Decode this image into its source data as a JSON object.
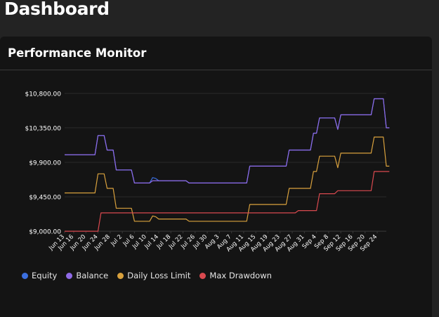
{
  "header": {
    "title": "Dashboard"
  },
  "card": {
    "title": "Performance Monitor"
  },
  "colors": {
    "equity": "#3b6fe0",
    "balance": "#8f6ae6",
    "daily_loss_limit": "#d9a13d",
    "max_drawdown": "#d9494f",
    "grid": "#2a2a2a",
    "axis_text": "#ffffff"
  },
  "chart_data": {
    "type": "line",
    "title": "",
    "xlabel": "",
    "ylabel": "",
    "ylim": [
      9000,
      10900
    ],
    "y_ticks": [
      "$9,000.00",
      "$9,450.00",
      "$9,900.00",
      "$10,350.00",
      "$10,800.00"
    ],
    "y_tick_values": [
      9000,
      9450,
      9900,
      10350,
      10800
    ],
    "x_ticks": [
      "Jun 13",
      "Jun 16",
      "Jun 20",
      "Jun 24",
      "Jun 28",
      "Jul 2",
      "Jul 6",
      "Jul 10",
      "Jul 14",
      "Jul 18",
      "Jul 22",
      "Jul 26",
      "Jul 30",
      "Aug 3",
      "Aug 7",
      "Aug 11",
      "Aug 15",
      "Aug 19",
      "Aug 23",
      "Aug 27",
      "Aug 31",
      "Sep 4",
      "Sep 8",
      "Sep 12",
      "Sep 16",
      "Sep 20",
      "Sep 24"
    ],
    "x_range": [
      "Jun 13",
      "Sep 27"
    ],
    "grid": true,
    "legend_position": "bottom-left",
    "series": [
      {
        "name": "Equity",
        "color_key": "equity",
        "points": [
          [
            "Jun 13",
            10000
          ],
          [
            "Jun 23",
            10000
          ],
          [
            "Jun 24",
            10250
          ],
          [
            "Jun 26",
            10250
          ],
          [
            "Jun 27",
            10060
          ],
          [
            "Jun 29",
            10060
          ],
          [
            "Jun 30",
            9800
          ],
          [
            "Jul 5",
            9800
          ],
          [
            "Jul 6",
            9630
          ],
          [
            "Jul 11",
            9630
          ],
          [
            "Jul 12",
            9700
          ],
          [
            "Jul 13",
            9690
          ],
          [
            "Jul 14",
            9660
          ],
          [
            "Jul 23",
            9660
          ],
          [
            "Jul 24",
            9630
          ],
          [
            "Aug 12",
            9630
          ],
          [
            "Aug 13",
            9850
          ],
          [
            "Aug 25",
            9850
          ],
          [
            "Aug 26",
            10060
          ],
          [
            "Sep 2",
            10060
          ],
          [
            "Sep 3",
            10280
          ],
          [
            "Sep 4",
            10280
          ],
          [
            "Sep 5",
            10480
          ],
          [
            "Sep 10",
            10480
          ],
          [
            "Sep 11",
            10330
          ],
          [
            "Sep 12",
            10520
          ],
          [
            "Sep 22",
            10520
          ],
          [
            "Sep 23",
            10730
          ],
          [
            "Sep 26",
            10730
          ],
          [
            "Sep 27",
            10350
          ],
          [
            "Sep 28",
            10350
          ]
        ]
      },
      {
        "name": "Balance",
        "color_key": "balance",
        "points": [
          [
            "Jun 13",
            10000
          ],
          [
            "Jun 23",
            10000
          ],
          [
            "Jun 24",
            10250
          ],
          [
            "Jun 26",
            10250
          ],
          [
            "Jun 27",
            10060
          ],
          [
            "Jun 29",
            10060
          ],
          [
            "Jun 30",
            9800
          ],
          [
            "Jul 5",
            9800
          ],
          [
            "Jul 6",
            9630
          ],
          [
            "Jul 11",
            9630
          ],
          [
            "Jul 12",
            9660
          ],
          [
            "Jul 23",
            9660
          ],
          [
            "Jul 24",
            9630
          ],
          [
            "Aug 12",
            9630
          ],
          [
            "Aug 13",
            9850
          ],
          [
            "Aug 25",
            9850
          ],
          [
            "Aug 26",
            10060
          ],
          [
            "Sep 2",
            10060
          ],
          [
            "Sep 3",
            10280
          ],
          [
            "Sep 4",
            10280
          ],
          [
            "Sep 5",
            10480
          ],
          [
            "Sep 10",
            10480
          ],
          [
            "Sep 11",
            10330
          ],
          [
            "Sep 12",
            10520
          ],
          [
            "Sep 22",
            10520
          ],
          [
            "Sep 23",
            10730
          ],
          [
            "Sep 26",
            10730
          ],
          [
            "Sep 27",
            10350
          ],
          [
            "Sep 28",
            10350
          ]
        ]
      },
      {
        "name": "Daily Loss Limit",
        "color_key": "daily_loss_limit",
        "points": [
          [
            "Jun 13",
            9500
          ],
          [
            "Jun 23",
            9500
          ],
          [
            "Jun 24",
            9750
          ],
          [
            "Jun 26",
            9750
          ],
          [
            "Jun 27",
            9560
          ],
          [
            "Jun 29",
            9560
          ],
          [
            "Jun 30",
            9300
          ],
          [
            "Jul 5",
            9300
          ],
          [
            "Jul 6",
            9130
          ],
          [
            "Jul 11",
            9130
          ],
          [
            "Jul 12",
            9200
          ],
          [
            "Jul 13",
            9190
          ],
          [
            "Jul 14",
            9160
          ],
          [
            "Jul 23",
            9160
          ],
          [
            "Jul 24",
            9130
          ],
          [
            "Aug 12",
            9130
          ],
          [
            "Aug 13",
            9350
          ],
          [
            "Aug 25",
            9350
          ],
          [
            "Aug 26",
            9560
          ],
          [
            "Sep 2",
            9560
          ],
          [
            "Sep 3",
            9780
          ],
          [
            "Sep 4",
            9780
          ],
          [
            "Sep 5",
            9980
          ],
          [
            "Sep 10",
            9980
          ],
          [
            "Sep 11",
            9830
          ],
          [
            "Sep 12",
            10020
          ],
          [
            "Sep 22",
            10020
          ],
          [
            "Sep 23",
            10230
          ],
          [
            "Sep 26",
            10230
          ],
          [
            "Sep 27",
            9850
          ],
          [
            "Sep 28",
            9850
          ]
        ]
      },
      {
        "name": "Max Drawdown",
        "color_key": "max_drawdown",
        "points": [
          [
            "Jun 13",
            9000
          ],
          [
            "Jun 24",
            9000
          ],
          [
            "Jun 25",
            9240
          ],
          [
            "Aug 28",
            9240
          ],
          [
            "Aug 29",
            9270
          ],
          [
            "Sep 4",
            9270
          ],
          [
            "Sep 5",
            9490
          ],
          [
            "Sep 10",
            9490
          ],
          [
            "Sep 11",
            9530
          ],
          [
            "Sep 22",
            9530
          ],
          [
            "Sep 23",
            9780
          ],
          [
            "Sep 28",
            9780
          ]
        ]
      }
    ]
  },
  "legend": [
    {
      "label": "Equity",
      "color_key": "equity"
    },
    {
      "label": "Balance",
      "color_key": "balance"
    },
    {
      "label": "Daily Loss Limit",
      "color_key": "daily_loss_limit"
    },
    {
      "label": "Max Drawdown",
      "color_key": "max_drawdown"
    }
  ]
}
